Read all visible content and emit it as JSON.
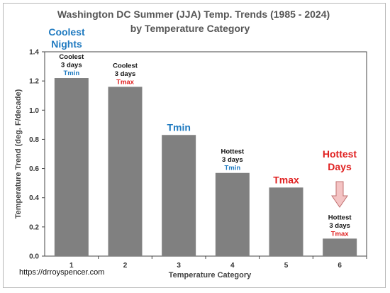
{
  "chart_data": {
    "type": "bar",
    "title": "Washington DC  Summer (JJA) Temp. Trends (1985 - 2024)",
    "subtitle": "by Temperature Category",
    "xlabel": "Temperature  Category",
    "ylabel": "Temperature Trend (deg. F/decade)",
    "categories": [
      "1",
      "2",
      "3",
      "4",
      "5",
      "6"
    ],
    "values": [
      1.22,
      1.16,
      0.83,
      0.57,
      0.47,
      0.12
    ],
    "ylim": [
      0,
      1.4
    ],
    "yticks": [
      "0.0",
      "0.2",
      "0.4",
      "0.6",
      "0.8",
      "1.0",
      "1.2",
      "1.4"
    ],
    "grid": false,
    "bar_color": "#808080",
    "annotations": [
      {
        "bar": 0,
        "lines": [
          "Coolest",
          "3 days"
        ],
        "tag": "Tmin",
        "tag_color": "blue"
      },
      {
        "bar": 1,
        "lines": [
          "Coolest",
          "3 days"
        ],
        "tag": "Tmax",
        "tag_color": "red"
      },
      {
        "bar": 2,
        "lines": [],
        "tag": "Tmin",
        "tag_color": "blue",
        "large": true
      },
      {
        "bar": 3,
        "lines": [
          "Hottest",
          "3 days"
        ],
        "tag": "Tmin",
        "tag_color": "blue"
      },
      {
        "bar": 4,
        "lines": [],
        "tag": "Tmax",
        "tag_color": "red",
        "large": true
      },
      {
        "bar": 5,
        "lines": [
          "Hottest",
          "3 days"
        ],
        "tag": "Tmax",
        "tag_color": "red"
      }
    ],
    "callouts": {
      "coolest_nights": [
        "Coolest",
        "Nights"
      ],
      "hottest_days": [
        "Hottest",
        "Days"
      ]
    },
    "colors": {
      "blue": "#1f7ac0",
      "red": "#e02020"
    },
    "source": "https://drroyspencer.com"
  }
}
